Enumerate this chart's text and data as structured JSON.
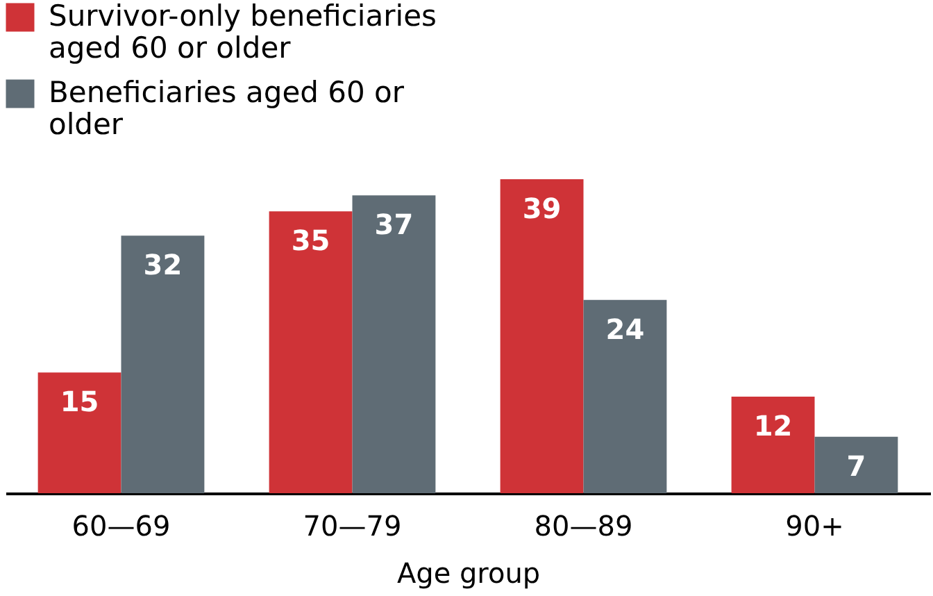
{
  "chart_data": {
    "type": "bar",
    "xlabel": "Age group",
    "categories": [
      "60—69",
      "70—79",
      "80—89",
      "90+"
    ],
    "series": [
      {
        "name": "Survivor-only beneficiaries aged 60 or older",
        "color": "#cf3337",
        "values": [
          15,
          35,
          39,
          12
        ]
      },
      {
        "name": "Beneficiaries aged 60 or older",
        "color": "#5f6c75",
        "values": [
          32,
          37,
          24,
          7
        ]
      }
    ],
    "data_labels": true,
    "tick_labels": "x",
    "legend": "top left"
  }
}
